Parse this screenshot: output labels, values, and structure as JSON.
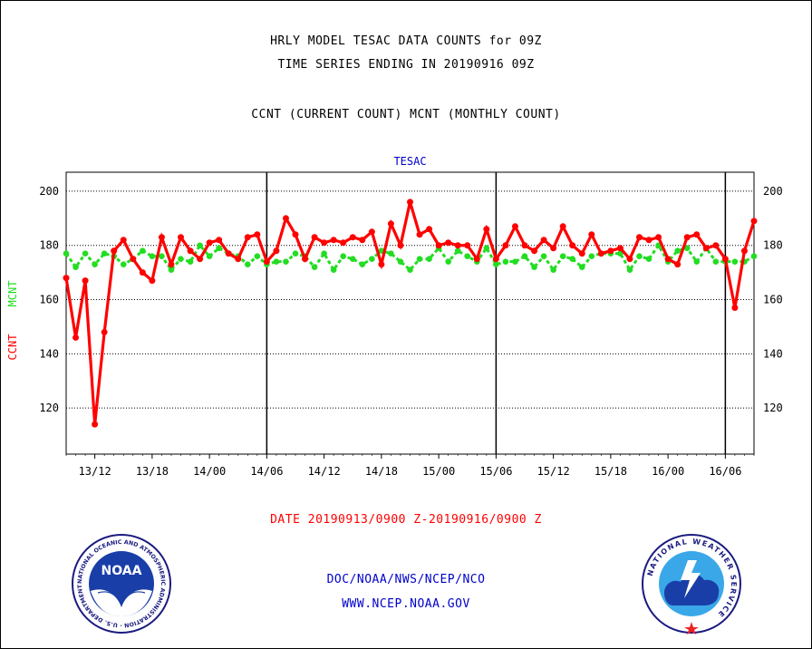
{
  "header": {
    "line1": "HRLY MODEL TESAC DATA COUNTS for 09Z",
    "line2": "TIME SERIES ENDING IN 20190916 09Z",
    "line3": "CCNT (CURRENT COUNT) MCNT (MONTHLY COUNT)"
  },
  "footer": {
    "date_range": "DATE 20190913/0900 Z-20190916/0900 Z",
    "org": "DOC/NOAA/NWS/NCEP/NCO",
    "url": "WWW.NCEP.NOAA.GOV"
  },
  "logos": {
    "noaa_text": "NOAA",
    "noaa_ring": "NATIONAL OCEANIC AND ATMOSPHERIC ADMINISTRATION · U.S. DEPARTMENT OF COMMERCE",
    "nws_ring": "NATIONAL WEATHER SERVICE"
  },
  "colors": {
    "ccnt": "#ff0000",
    "mcnt": "#22dd22",
    "title": "#0000cc",
    "date": "#ff0000",
    "footer": "#0000cc",
    "axis": "#000000"
  },
  "chart_data": {
    "type": "line",
    "title": "TESAC",
    "ylabel_left": "CCNT",
    "ylabel_right": "MCNT",
    "ylim": [
      103,
      207
    ],
    "yticks": [
      120,
      140,
      160,
      180,
      200
    ],
    "grid": "horizontal-dotted",
    "x_tick_labels": [
      "13/12",
      "13/18",
      "14/00",
      "14/06",
      "14/12",
      "14/18",
      "15/00",
      "15/06",
      "15/12",
      "15/18",
      "16/00",
      "16/06"
    ],
    "x_tick_hours": [
      3,
      9,
      15,
      21,
      27,
      33,
      39,
      45,
      51,
      57,
      63,
      69
    ],
    "x_range_hours": [
      0,
      72
    ],
    "day_boundaries_hours": [
      21,
      45,
      69
    ],
    "x_unit": "hours after 20190913/0900 Z",
    "series": [
      {
        "name": "CCNT",
        "color": "#ff0000",
        "values": [
          168,
          146,
          167,
          114,
          148,
          178,
          182,
          175,
          170,
          167,
          183,
          173,
          183,
          178,
          175,
          181,
          182,
          177,
          175,
          183,
          184,
          174,
          178,
          190,
          184,
          175,
          183,
          181,
          182,
          181,
          183,
          182,
          185,
          173,
          188,
          180,
          196,
          184,
          186,
          180,
          181,
          180,
          180,
          175,
          186,
          175,
          180,
          187,
          180,
          178,
          182,
          179,
          187,
          180,
          177,
          184,
          177,
          178,
          179,
          175,
          183,
          182,
          183,
          175,
          173,
          183,
          184,
          179,
          180,
          175,
          157,
          178,
          189
        ]
      },
      {
        "name": "MCNT",
        "color": "#22dd22",
        "values": [
          177,
          172,
          177,
          173,
          177,
          176,
          173,
          175,
          178,
          176,
          176,
          171,
          175,
          174,
          180,
          176,
          179,
          177,
          176,
          173,
          176,
          173,
          174,
          174,
          177,
          176,
          172,
          177,
          171,
          176,
          175,
          173,
          175,
          178,
          177,
          174,
          171,
          175,
          175,
          179,
          174,
          178,
          176,
          174,
          179,
          173,
          174,
          174,
          176,
          172,
          176,
          171,
          176,
          175,
          172,
          176,
          177,
          177,
          177,
          171,
          176,
          175,
          180,
          174,
          178,
          179,
          174,
          179,
          174,
          174,
          174,
          174,
          176
        ]
      }
    ]
  }
}
